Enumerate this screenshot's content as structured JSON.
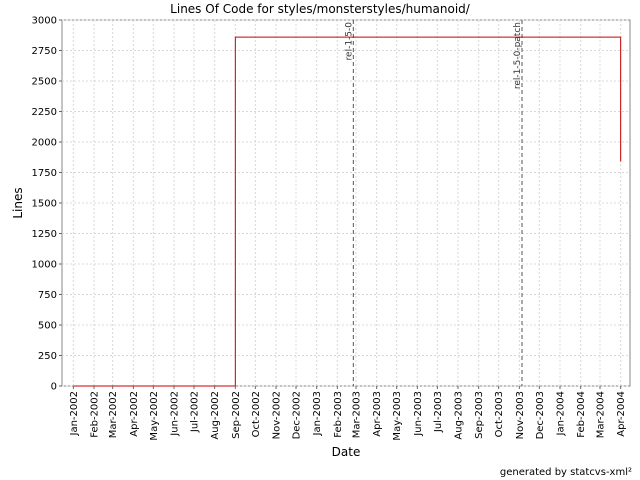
{
  "chart_data": {
    "type": "line",
    "title": "Lines Of Code for styles/monsterstyles/humanoid/",
    "xlabel": "Date",
    "ylabel": "Lines",
    "ylim": [
      0,
      3000
    ],
    "yticks": [
      0,
      250,
      500,
      750,
      1000,
      1250,
      1500,
      1750,
      2000,
      2250,
      2500,
      2750,
      3000
    ],
    "xlim": [
      "2001-12-15",
      "2004-04-15"
    ],
    "xticks": [
      "2002-01-01",
      "2002-02-01",
      "2002-03-01",
      "2002-04-01",
      "2002-05-01",
      "2002-06-01",
      "2002-07-01",
      "2002-08-01",
      "2002-09-01",
      "2002-10-01",
      "2002-11-01",
      "2002-12-01",
      "2003-01-01",
      "2003-02-01",
      "2003-03-01",
      "2003-04-01",
      "2003-05-01",
      "2003-06-01",
      "2003-07-01",
      "2003-08-01",
      "2003-09-01",
      "2003-10-01",
      "2003-11-01",
      "2003-12-01",
      "2004-01-01",
      "2004-02-01",
      "2004-03-01",
      "2004-04-01"
    ],
    "xtick_labels": [
      "Jan-2002",
      "Feb-2002",
      "Mar-2002",
      "Apr-2002",
      "May-2002",
      "Jun-2002",
      "Jul-2002",
      "Aug-2002",
      "Sep-2002",
      "Oct-2002",
      "Nov-2002",
      "Dec-2002",
      "Jan-2003",
      "Feb-2003",
      "Mar-2003",
      "Apr-2003",
      "May-2003",
      "Jun-2003",
      "Jul-2003",
      "Aug-2003",
      "Sep-2003",
      "Oct-2003",
      "Nov-2003",
      "Dec-2003",
      "Jan-2004",
      "Feb-2004",
      "Mar-2004",
      "Apr-2004"
    ],
    "grid": true,
    "series": [
      {
        "color": "#cc0000",
        "step": true,
        "points": [
          {
            "x": "2002-01-01",
            "y": 0
          },
          {
            "x": "2002-09-01",
            "y": 0
          },
          {
            "x": "2002-09-01",
            "y": 2860
          },
          {
            "x": "2004-04-01",
            "y": 2860
          },
          {
            "x": "2004-04-01",
            "y": 1840
          }
        ]
      }
    ],
    "markers": [
      {
        "label": "rel-1-5-0",
        "x": "2003-02-25"
      },
      {
        "label": "rel-1-5-0-patch",
        "x": "2003-11-05"
      }
    ]
  },
  "footer": {
    "credit": "generated by statcvs-xml²"
  }
}
